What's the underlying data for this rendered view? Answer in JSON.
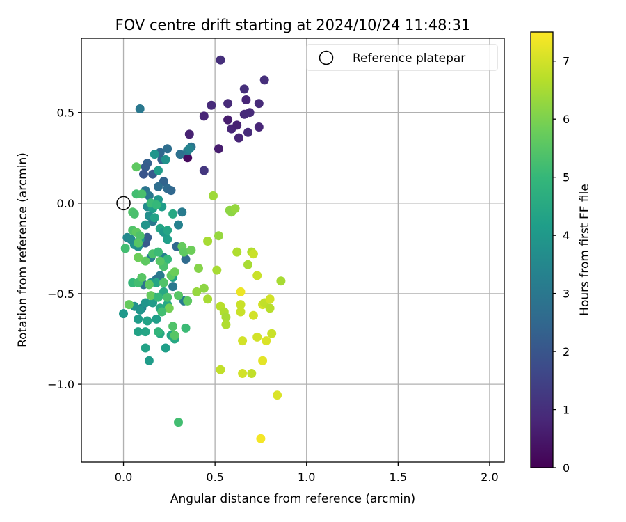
{
  "chart_data": {
    "type": "scatter",
    "title": "FOV centre drift starting at 2024/10/24 11:48:31",
    "xlabel": "Angular distance from reference (arcmin)",
    "ylabel": "Rotation from reference (arcmin)",
    "xlim": [
      -0.23,
      2.08
    ],
    "ylim": [
      -1.43,
      0.91
    ],
    "xticks": [
      0.0,
      0.5,
      1.0,
      1.5,
      2.0
    ],
    "xtick_labels": [
      "0.0",
      "0.5",
      "1.0",
      "1.5",
      "2.0"
    ],
    "yticks": [
      -1.0,
      -0.5,
      0.0,
      0.5
    ],
    "ytick_labels": [
      "−1.0",
      "−0.5",
      "0.0",
      "0.5"
    ],
    "grid": true,
    "legend": {
      "placement": "top-right",
      "entries": [
        "Reference platepar"
      ]
    },
    "reference_point": {
      "x": 0.0,
      "y": 0.0,
      "marker": "open-circle",
      "color": "#000000"
    },
    "colorbar": {
      "label": "Hours from first FF file",
      "range": [
        0,
        7.5
      ],
      "ticks": [
        0,
        1,
        2,
        3,
        4,
        5,
        6,
        7
      ],
      "tick_labels": [
        "0",
        "1",
        "2",
        "3",
        "4",
        "5",
        "6",
        "7"
      ],
      "colormap": "viridis",
      "colormap_stops": [
        "#440154",
        "#482878",
        "#3e4989",
        "#31688e",
        "#26828e",
        "#1f9e89",
        "#35b779",
        "#6ece58",
        "#b5de2b",
        "#fde725"
      ]
    },
    "series": [
      {
        "points": [
          [
            0.44,
            0.48
          ],
          [
            0.48,
            0.54
          ],
          [
            0.53,
            0.79
          ],
          [
            0.57,
            0.55
          ],
          [
            0.57,
            0.46
          ],
          [
            0.59,
            0.41
          ],
          [
            0.62,
            0.43
          ],
          [
            0.63,
            0.36
          ],
          [
            0.66,
            0.49
          ],
          [
            0.66,
            0.63
          ],
          [
            0.67,
            0.57
          ],
          [
            0.68,
            0.39
          ],
          [
            0.69,
            0.5
          ],
          [
            0.74,
            0.55
          ],
          [
            0.74,
            0.42
          ],
          [
            0.77,
            0.68
          ],
          [
            0.52,
            0.3
          ],
          [
            0.36,
            0.38
          ],
          [
            0.35,
            0.25
          ],
          [
            0.44,
            0.18
          ],
          [
            0.09,
            0.52
          ],
          [
            0.2,
            0.28
          ],
          [
            0.21,
            0.24
          ],
          [
            0.24,
            0.3
          ],
          [
            0.31,
            0.27
          ],
          [
            0.37,
            0.31
          ],
          [
            0.35,
            0.29
          ],
          [
            0.13,
            0.22
          ],
          [
            0.12,
            0.2
          ],
          [
            0.11,
            0.16
          ],
          [
            0.16,
            0.16
          ],
          [
            0.22,
            0.12
          ],
          [
            0.24,
            0.08
          ],
          [
            0.26,
            0.07
          ],
          [
            0.19,
            0.09
          ],
          [
            0.12,
            0.07
          ],
          [
            0.14,
            0.04
          ],
          [
            0.3,
            -0.12
          ],
          [
            0.32,
            -0.05
          ],
          [
            0.12,
            -0.22
          ],
          [
            0.13,
            -0.19
          ],
          [
            0.29,
            -0.24
          ],
          [
            0.34,
            -0.31
          ],
          [
            0.2,
            -0.4
          ],
          [
            0.18,
            -0.42
          ],
          [
            0.11,
            -0.45
          ],
          [
            0.27,
            -0.46
          ],
          [
            0.1,
            -0.58
          ],
          [
            0.33,
            -0.54
          ],
          [
            0.15,
            -0.3
          ],
          [
            0.22,
            -0.3
          ],
          [
            0.16,
            -0.1
          ],
          [
            0.02,
            -0.19
          ],
          [
            0.06,
            -0.23
          ],
          [
            0.04,
            -0.2
          ],
          [
            0.09,
            -0.2
          ],
          [
            0.08,
            -0.24
          ],
          [
            0.13,
            -0.02
          ],
          [
            0.16,
            -0.03
          ],
          [
            0.19,
            0.02
          ],
          [
            0.21,
            -0.02
          ],
          [
            0.14,
            -0.07
          ],
          [
            0.12,
            -0.12
          ],
          [
            0.17,
            -0.08
          ],
          [
            0.2,
            -0.14
          ],
          [
            0.22,
            -0.16
          ],
          [
            0.24,
            -0.2
          ],
          [
            0.24,
            -0.15
          ],
          [
            0.27,
            -0.06
          ],
          [
            0.23,
            0.24
          ],
          [
            0.19,
            0.18
          ],
          [
            0.17,
            0.27
          ],
          [
            0.36,
            0.3
          ],
          [
            0.15,
            -0.44
          ],
          [
            0.18,
            -0.44
          ],
          [
            0.22,
            -0.49
          ],
          [
            0.27,
            -0.41
          ],
          [
            0.17,
            -0.52
          ],
          [
            0.12,
            -0.55
          ],
          [
            0.16,
            -0.55
          ],
          [
            0.24,
            -0.56
          ],
          [
            0.13,
            -0.65
          ],
          [
            0.08,
            -0.64
          ],
          [
            0.18,
            -0.64
          ],
          [
            0.09,
            -0.59
          ],
          [
            0.0,
            -0.61
          ],
          [
            0.26,
            -0.73
          ],
          [
            0.28,
            -0.75
          ],
          [
            0.23,
            -0.8
          ],
          [
            0.12,
            -0.8
          ],
          [
            0.2,
            -0.72
          ],
          [
            0.12,
            -0.71
          ],
          [
            0.08,
            -0.71
          ],
          [
            0.14,
            -0.87
          ],
          [
            0.06,
            -0.57
          ],
          [
            0.2,
            -0.58
          ],
          [
            0.07,
            0.2
          ],
          [
            0.07,
            0.05
          ],
          [
            0.1,
            0.05
          ],
          [
            0.15,
            0.0
          ],
          [
            0.18,
            -0.01
          ],
          [
            0.05,
            -0.05
          ],
          [
            0.06,
            -0.06
          ],
          [
            0.05,
            -0.15
          ],
          [
            0.07,
            -0.16
          ],
          [
            0.09,
            -0.18
          ],
          [
            0.08,
            -0.22
          ],
          [
            0.01,
            -0.25
          ],
          [
            0.16,
            -0.28
          ],
          [
            0.19,
            -0.27
          ],
          [
            0.24,
            -0.31
          ],
          [
            0.32,
            -0.24
          ],
          [
            0.33,
            -0.27
          ],
          [
            0.37,
            -0.26
          ],
          [
            0.26,
            -0.4
          ],
          [
            0.28,
            -0.38
          ],
          [
            0.3,
            -0.51
          ],
          [
            0.35,
            -0.54
          ],
          [
            0.25,
            -0.58
          ],
          [
            0.27,
            -0.68
          ],
          [
            0.05,
            -0.44
          ],
          [
            0.08,
            -0.44
          ],
          [
            0.1,
            -0.41
          ],
          [
            0.15,
            -0.51
          ],
          [
            0.21,
            -0.6
          ],
          [
            0.19,
            -0.71
          ],
          [
            0.34,
            -0.69
          ],
          [
            0.24,
            -0.52
          ],
          [
            0.22,
            -0.35
          ],
          [
            0.2,
            -0.32
          ],
          [
            0.12,
            -0.32
          ],
          [
            0.08,
            -0.3
          ],
          [
            0.03,
            -0.56
          ],
          [
            0.3,
            -1.21
          ],
          [
            0.19,
            -0.52
          ],
          [
            0.28,
            -0.73
          ],
          [
            0.22,
            -0.44
          ],
          [
            0.14,
            -0.45
          ],
          [
            0.41,
            -0.36
          ],
          [
            0.4,
            -0.49
          ],
          [
            0.44,
            -0.47
          ],
          [
            0.46,
            -0.53
          ],
          [
            0.46,
            -0.21
          ],
          [
            0.49,
            0.04
          ],
          [
            0.51,
            -0.37
          ],
          [
            0.52,
            -0.18
          ],
          [
            0.53,
            -0.57
          ],
          [
            0.55,
            -0.6
          ],
          [
            0.56,
            -0.63
          ],
          [
            0.56,
            -0.67
          ],
          [
            0.58,
            -0.04
          ],
          [
            0.59,
            -0.05
          ],
          [
            0.61,
            -0.03
          ],
          [
            0.62,
            -0.27
          ],
          [
            0.53,
            -0.92
          ],
          [
            0.64,
            -0.56
          ],
          [
            0.64,
            -0.6
          ],
          [
            0.65,
            -0.94
          ],
          [
            0.65,
            -0.76
          ],
          [
            0.68,
            -0.34
          ],
          [
            0.7,
            -0.27
          ],
          [
            0.71,
            -0.28
          ],
          [
            0.7,
            -0.94
          ],
          [
            0.71,
            -0.62
          ],
          [
            0.73,
            -0.74
          ],
          [
            0.73,
            -0.4
          ],
          [
            0.64,
            -0.49
          ],
          [
            0.76,
            -0.56
          ],
          [
            0.76,
            -0.87
          ],
          [
            0.77,
            -0.55
          ],
          [
            0.78,
            -0.76
          ],
          [
            0.8,
            -0.53
          ],
          [
            0.8,
            -0.58
          ],
          [
            0.81,
            -0.72
          ],
          [
            0.84,
            -1.06
          ],
          [
            0.86,
            -0.43
          ],
          [
            0.75,
            -1.3
          ]
        ],
        "hours": [
          0.8,
          0.9,
          1.0,
          0.9,
          0.6,
          0.8,
          0.7,
          0.8,
          0.9,
          1.0,
          0.8,
          0.9,
          0.9,
          0.9,
          0.8,
          1.0,
          0.6,
          0.7,
          0.2,
          1.2,
          3.0,
          2.5,
          2.4,
          2.7,
          2.8,
          2.9,
          3.1,
          2.3,
          2.2,
          2.0,
          2.1,
          2.4,
          2.6,
          2.5,
          2.7,
          2.9,
          3.0,
          3.3,
          3.1,
          2.1,
          2.2,
          2.5,
          2.6,
          3.1,
          2.9,
          2.8,
          3.0,
          3.3,
          3.1,
          3.2,
          3.3,
          3.0,
          3.5,
          3.8,
          3.6,
          3.9,
          3.7,
          3.6,
          4.2,
          4.0,
          4.1,
          3.7,
          3.9,
          4.3,
          4.4,
          4.0,
          4.2,
          4.4,
          4.5,
          3.8,
          4.1,
          3.9,
          3.4,
          3.8,
          4.4,
          4.5,
          4.2,
          4.3,
          3.9,
          4.1,
          4.5,
          4.3,
          4.1,
          4.2,
          3.9,
          4.0,
          4.4,
          4.5,
          4.2,
          4.3,
          4.5,
          4.4,
          4.3,
          4.1,
          3.8,
          4.5,
          5.6,
          5.2,
          5.3,
          5.1,
          5.0,
          5.4,
          5.3,
          5.4,
          5.6,
          5.4,
          5.5,
          5.2,
          5.3,
          5.1,
          5.0,
          5.7,
          5.6,
          5.8,
          5.6,
          5.8,
          5.5,
          5.6,
          5.9,
          5.4,
          5.0,
          5.2,
          5.5,
          5.7,
          5.2,
          4.9,
          5.1,
          5.3,
          5.3,
          5.5,
          5.6,
          5.8,
          5.7,
          5.2,
          5.0,
          5.5,
          5.4,
          5.6,
          6.1,
          6.3,
          6.2,
          6.5,
          6.5,
          6.4,
          6.5,
          6.3,
          6.7,
          6.6,
          6.5,
          6.6,
          6.2,
          6.2,
          6.3,
          6.6,
          6.8,
          6.9,
          6.9,
          7.0,
          7.0,
          6.5,
          6.6,
          6.9,
          6.8,
          7.0,
          7.0,
          6.9,
          7.3,
          7.0,
          7.2,
          6.8,
          7.1,
          7.0,
          6.7,
          6.9,
          7.1,
          6.5,
          7.4
        ]
      }
    ]
  }
}
